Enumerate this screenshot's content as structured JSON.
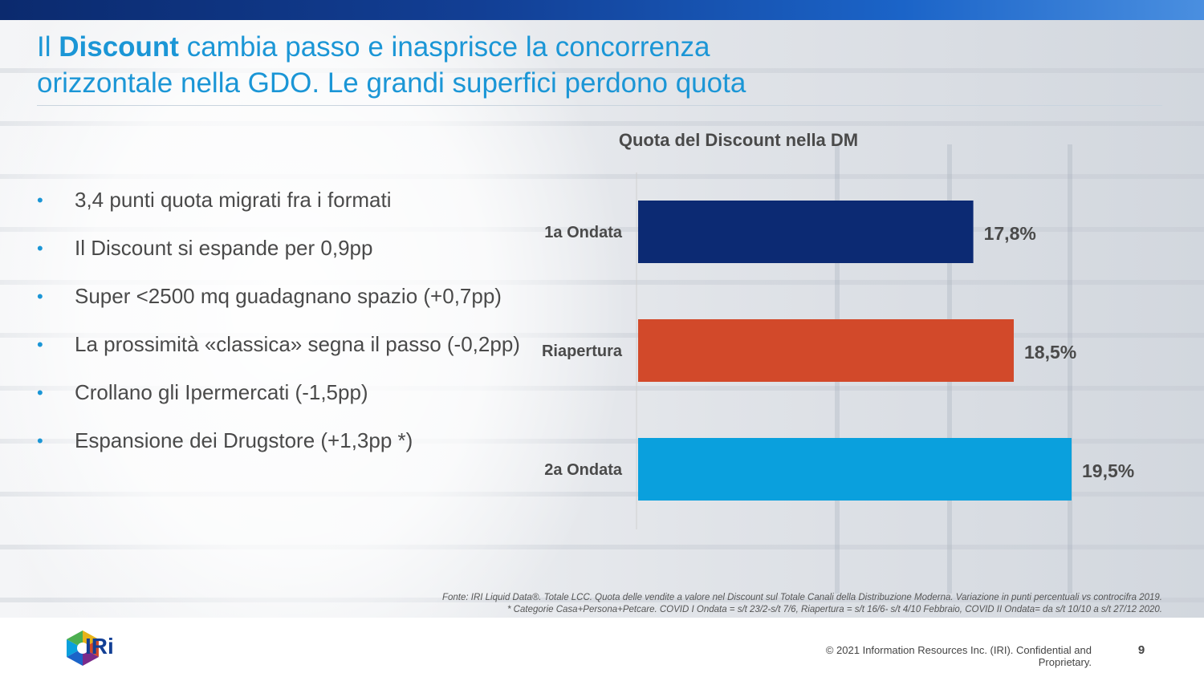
{
  "title": {
    "part1": "Il ",
    "bold": "Discount",
    "part2": " cambia passo e inasprisce la concorrenza",
    "line2": "orizzontale nella GDO. Le grandi superfici perdono quota"
  },
  "bullets": [
    "3,4 punti quota migrati fra i formati",
    "Il Discount si espande per 0,9pp",
    "Super <2500 mq guadagnano spazio (+0,7pp)",
    "La prossimità «classica» segna il passo (-0,2pp)",
    "Crollano gli Ipermercati (-1,5pp)",
    "Espansione dei Drugstore (+1,3pp *)"
  ],
  "chart_data": {
    "type": "bar",
    "orientation": "horizontal",
    "title": "Quota del Discount nella DM",
    "categories": [
      "1a Ondata",
      "Riapertura",
      "2a Ondata"
    ],
    "values": [
      17.8,
      18.5,
      19.5
    ],
    "value_labels": [
      "17,8%",
      "18,5%",
      "19,5%"
    ],
    "colors": [
      "#0c2a73",
      "#d2492a",
      "#0aa0dd"
    ],
    "xlim": [
      12,
      20
    ],
    "grid": false,
    "legend": "none"
  },
  "source": {
    "line1": "Fonte: IRI Liquid Data®. Totale LCC. Quota delle vendite a valore nel Discount sul Totale Canali della Distribuzione Moderna. Variazione in punti percentuali vs controcifra 2019.",
    "line2": "* Categorie Casa+Persona+Petcare. COVID I Ondata = s/t 23/2-s/t 7/6, Riapertura = s/t 16/6- s/t 4/10 Febbraio, COVID II Ondata= da s/t 10/10 a s/t 27/12 2020."
  },
  "footer": {
    "logo_text": "IRi",
    "copyright": "© 2021 Information Resources Inc. (IRI). Confidential and Proprietary.",
    "page": "9"
  },
  "colors": {
    "title": "#1b96d6",
    "bullet_dot": "#1b96d6",
    "text": "#4a4a4a",
    "topbar": "#123f95"
  }
}
